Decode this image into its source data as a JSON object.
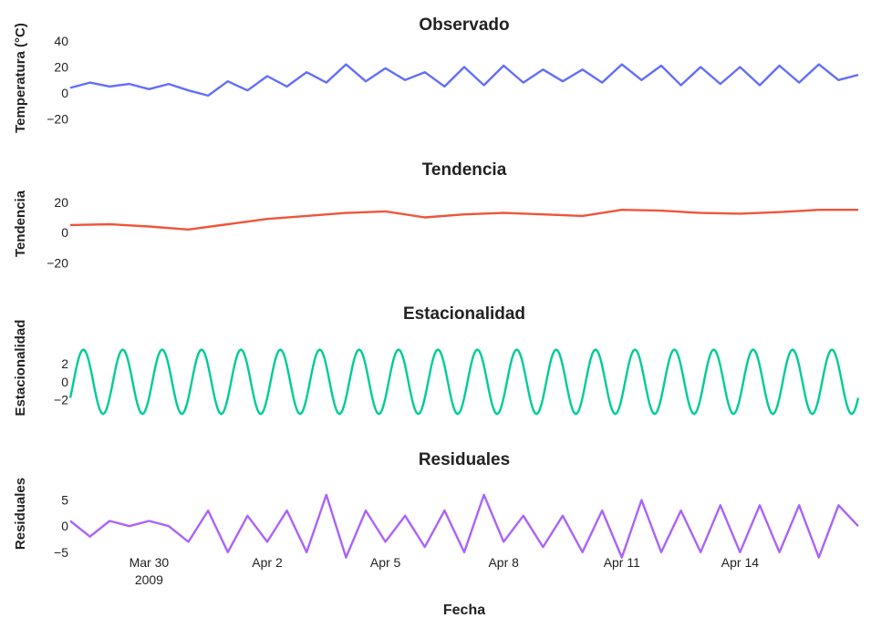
{
  "chart_data": {
    "type": "line",
    "x_domain": [
      "2009-03-28",
      "2009-04-17"
    ],
    "x_ticks": [
      {
        "date": "2009-03-30",
        "label": "Mar 30",
        "sublabel": "2009"
      },
      {
        "date": "2009-04-02",
        "label": "Apr 2"
      },
      {
        "date": "2009-04-05",
        "label": "Apr 5"
      },
      {
        "date": "2009-04-08",
        "label": "Apr 8"
      },
      {
        "date": "2009-04-11",
        "label": "Apr 11"
      },
      {
        "date": "2009-04-14",
        "label": "Apr 14"
      }
    ],
    "xlabel": "Fecha",
    "panels": [
      {
        "title": "Observado",
        "ylabel": "Temperatura (°C)",
        "color": "#636efa",
        "ylim": [
          -30,
          42
        ],
        "yticks": [
          40,
          20,
          0,
          -20
        ],
        "series": {
          "x": [
            "2009-03-28",
            "2009-03-28T12:00",
            "2009-03-29",
            "2009-03-29T12:00",
            "2009-03-30",
            "2009-03-30T12:00",
            "2009-03-31",
            "2009-03-31T12:00",
            "2009-04-01",
            "2009-04-01T12:00",
            "2009-04-02",
            "2009-04-02T12:00",
            "2009-04-03",
            "2009-04-03T12:00",
            "2009-04-04",
            "2009-04-04T12:00",
            "2009-04-05",
            "2009-04-05T12:00",
            "2009-04-06",
            "2009-04-06T12:00",
            "2009-04-07",
            "2009-04-07T12:00",
            "2009-04-08",
            "2009-04-08T12:00",
            "2009-04-09",
            "2009-04-09T12:00",
            "2009-04-10",
            "2009-04-10T12:00",
            "2009-04-11",
            "2009-04-11T12:00",
            "2009-04-12",
            "2009-04-12T12:00",
            "2009-04-13",
            "2009-04-13T12:00",
            "2009-04-14",
            "2009-04-14T12:00",
            "2009-04-15",
            "2009-04-15T12:00",
            "2009-04-16",
            "2009-04-16T12:00",
            "2009-04-17"
          ],
          "y": [
            4,
            8,
            5,
            7,
            3,
            7,
            2,
            -2,
            9,
            2,
            13,
            5,
            16,
            8,
            22,
            9,
            19,
            10,
            16,
            5,
            20,
            6,
            21,
            8,
            18,
            9,
            18,
            8,
            22,
            10,
            21,
            6,
            20,
            7,
            20,
            6,
            21,
            8,
            22,
            10,
            14
          ]
        }
      },
      {
        "title": "Tendencia",
        "ylabel": "Tendencia",
        "color": "#ef553b",
        "ylim": [
          -30,
          32
        ],
        "yticks": [
          20,
          0,
          -20
        ],
        "series": {
          "x": [
            "2009-03-28",
            "2009-03-29",
            "2009-03-30",
            "2009-03-31",
            "2009-04-01",
            "2009-04-02",
            "2009-04-03",
            "2009-04-04",
            "2009-04-05",
            "2009-04-06",
            "2009-04-07",
            "2009-04-08",
            "2009-04-09",
            "2009-04-10",
            "2009-04-11",
            "2009-04-12",
            "2009-04-13",
            "2009-04-14",
            "2009-04-15",
            "2009-04-16",
            "2009-04-17"
          ],
          "y": [
            5,
            5.5,
            4,
            2,
            5.5,
            9,
            11,
            13,
            14,
            10,
            12,
            13,
            12,
            11,
            15,
            14.5,
            13,
            12.5,
            13.5,
            15,
            15
          ]
        }
      },
      {
        "title": "Estacionalidad",
        "ylabel": "Estacionalidad",
        "color": "#00cc96",
        "ylim": [
          -4.5,
          6
        ],
        "yticks": [
          2,
          0,
          -2
        ],
        "series": {
          "periodic": true,
          "period_days": 1,
          "amplitude": 3.6,
          "peak_hour": 8
        }
      },
      {
        "title": "Residuales",
        "ylabel": "Residuales",
        "color": "#ab63fa",
        "ylim": [
          -8,
          10
        ],
        "yticks": [
          5,
          0,
          -5
        ],
        "series": {
          "x": [
            "2009-03-28",
            "2009-03-28T12:00",
            "2009-03-29",
            "2009-03-29T12:00",
            "2009-03-30",
            "2009-03-30T12:00",
            "2009-03-31",
            "2009-03-31T12:00",
            "2009-04-01",
            "2009-04-01T12:00",
            "2009-04-02",
            "2009-04-02T12:00",
            "2009-04-03",
            "2009-04-03T12:00",
            "2009-04-04",
            "2009-04-04T12:00",
            "2009-04-05",
            "2009-04-05T12:00",
            "2009-04-06",
            "2009-04-06T12:00",
            "2009-04-07",
            "2009-04-07T12:00",
            "2009-04-08",
            "2009-04-08T12:00",
            "2009-04-09",
            "2009-04-09T12:00",
            "2009-04-10",
            "2009-04-10T12:00",
            "2009-04-11",
            "2009-04-11T12:00",
            "2009-04-12",
            "2009-04-12T12:00",
            "2009-04-13",
            "2009-04-13T12:00",
            "2009-04-14",
            "2009-04-14T12:00",
            "2009-04-15",
            "2009-04-15T12:00",
            "2009-04-16",
            "2009-04-16T12:00",
            "2009-04-17"
          ],
          "y": [
            1,
            -2,
            1,
            0,
            1,
            0,
            -3,
            3,
            -5,
            2,
            -3,
            3,
            -5,
            6,
            -6,
            3,
            -3,
            2,
            -4,
            3,
            -5,
            6,
            -3,
            2,
            -4,
            2,
            -5,
            3,
            -6,
            5,
            -5,
            3,
            -5,
            4,
            -5,
            4,
            -5,
            4,
            -6,
            4,
            0
          ]
        }
      }
    ]
  }
}
